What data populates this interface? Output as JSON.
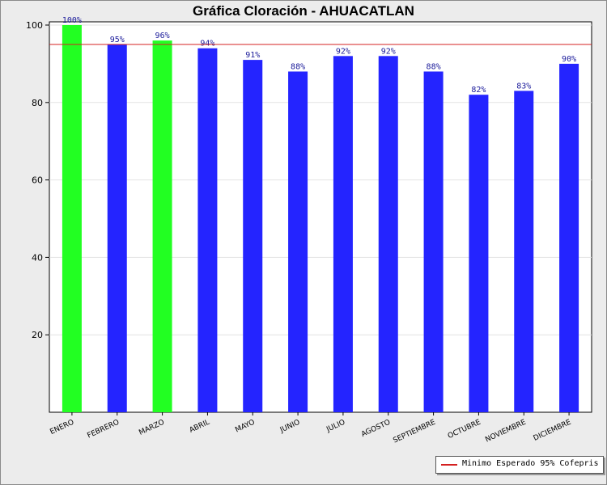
{
  "colors": {
    "reference_line": "#d42020",
    "above_reference": "#22ff22",
    "below_reference": "#2424ff"
  },
  "chart_data": {
    "type": "bar",
    "title": "Gráfica Cloración - AHUACATLAN",
    "categories": [
      "ENERO",
      "FEBRERO",
      "MARZO",
      "ABRIL",
      "MAYO",
      "JUNIO",
      "JULIO",
      "AGOSTO",
      "SEPTIEMBRE",
      "OCTUBRE",
      "NOVIEMBRE",
      "DICIEMBRE"
    ],
    "values": [
      100,
      95,
      96,
      94,
      91,
      88,
      92,
      92,
      88,
      82,
      83,
      90
    ],
    "data_labels": [
      "100%",
      "95%",
      "96%",
      "94%",
      "91%",
      "88%",
      "92%",
      "92%",
      "88%",
      "82%",
      "83%",
      "90%"
    ],
    "ylim": [
      0,
      100
    ],
    "yticks": [
      20,
      40,
      60,
      80,
      100
    ],
    "grid": true,
    "reference_line": {
      "value": 95,
      "label": "Minimo Esperado 95% Cofepris"
    },
    "legend_position": "bottom-right"
  }
}
